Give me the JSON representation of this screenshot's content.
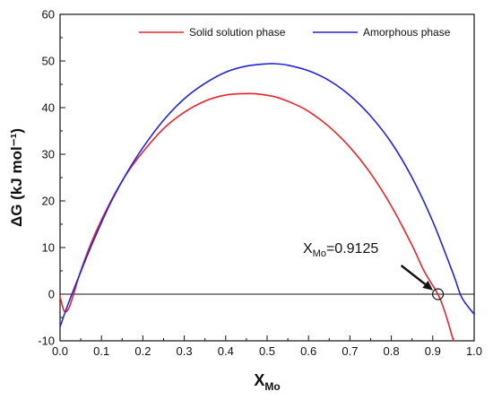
{
  "chart_data": {
    "type": "line",
    "xlabel": "X",
    "xlabel_sub": "Mo",
    "ylabel": "ΔG (kJ mol⁻¹)",
    "xlim": [
      0.0,
      1.0
    ],
    "ylim": [
      -10,
      60
    ],
    "x_ticks": [
      "0.0",
      "0.1",
      "0.2",
      "0.3",
      "0.4",
      "0.5",
      "0.6",
      "0.7",
      "0.8",
      "0.9",
      "1.0"
    ],
    "y_ticks": [
      "-10",
      "0",
      "10",
      "20",
      "30",
      "40",
      "50",
      "60"
    ],
    "grid": false,
    "legend_position": "top-right",
    "colors": {
      "solid": "#e8232a",
      "amorphous": "#2424d8",
      "axis": "#111111"
    },
    "series": [
      {
        "name": "Solid solution phase",
        "x": [
          0.0,
          0.01,
          0.02,
          0.03,
          0.05,
          0.08,
          0.12,
          0.16,
          0.2,
          0.25,
          0.3,
          0.35,
          0.4,
          0.45,
          0.48,
          0.52,
          0.56,
          0.6,
          0.65,
          0.7,
          0.75,
          0.8,
          0.85,
          0.88,
          0.9125,
          0.93,
          0.95
        ],
        "y": [
          -0.5,
          -3.6,
          -3.2,
          -0.8,
          5.0,
          12.0,
          19.5,
          25.7,
          30.5,
          35.5,
          39.0,
          41.4,
          42.7,
          43.0,
          42.9,
          42.3,
          41.0,
          39.2,
          35.9,
          31.5,
          25.9,
          18.9,
          10.5,
          4.8,
          0.0,
          -4.0,
          -10.0
        ]
      },
      {
        "name": "Amorphous phase",
        "x": [
          0.0,
          0.02,
          0.05,
          0.08,
          0.12,
          0.16,
          0.2,
          0.25,
          0.3,
          0.35,
          0.4,
          0.45,
          0.5,
          0.52,
          0.55,
          0.6,
          0.65,
          0.7,
          0.75,
          0.8,
          0.85,
          0.9,
          0.95,
          0.97,
          1.0
        ],
        "y": [
          -7.0,
          -2.0,
          4.8,
          11.3,
          19.2,
          25.8,
          31.4,
          37.3,
          41.9,
          45.2,
          47.6,
          48.9,
          49.4,
          49.4,
          49.1,
          47.9,
          45.8,
          42.6,
          38.2,
          32.5,
          25.0,
          15.6,
          4.2,
          -0.7,
          -4.3
        ]
      }
    ],
    "annotation": {
      "label_main": "X",
      "label_sub": "Mo",
      "label_value": "=0.9125",
      "x": 0.9125,
      "y": 0.0
    }
  }
}
